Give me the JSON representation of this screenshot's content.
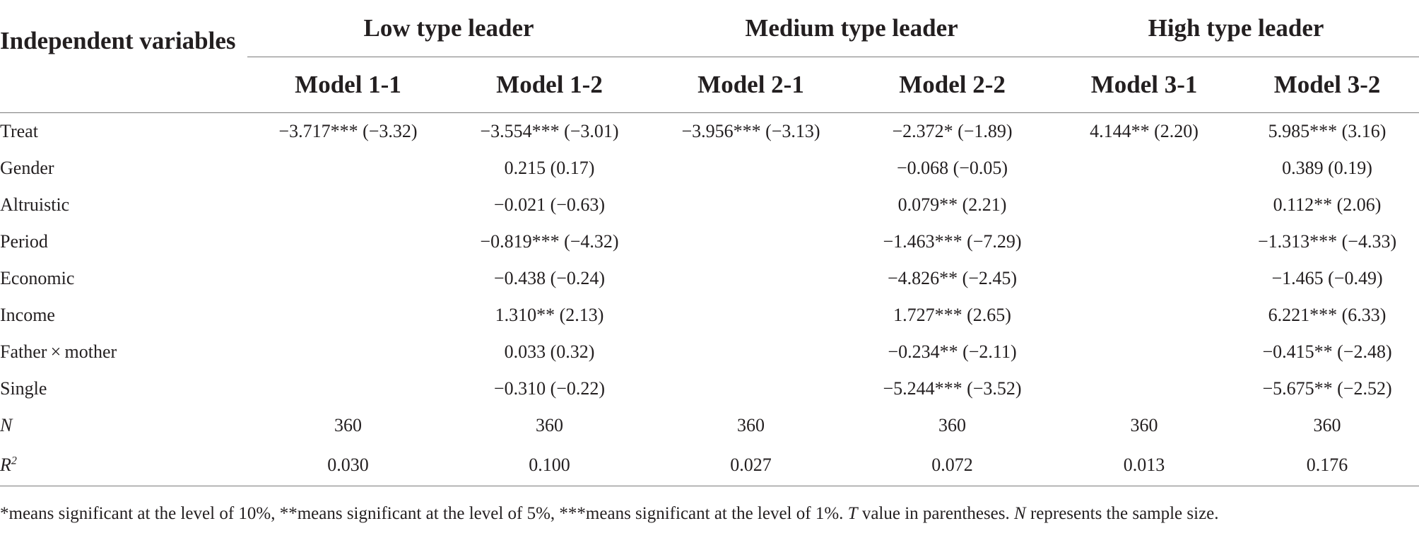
{
  "table": {
    "row_header": "Independent variables",
    "groups": [
      "Low type leader",
      "Medium type leader",
      "High type leader"
    ],
    "models": [
      "Model 1-1",
      "Model 1-2",
      "Model 2-1",
      "Model 2-2",
      "Model 3-1",
      "Model 3-2"
    ],
    "rows": [
      {
        "label": "Treat",
        "cells": [
          "−3.717*** (−3.32)",
          "−3.554*** (−3.01)",
          "−3.956*** (−3.13)",
          "−2.372* (−1.89)",
          "4.144** (2.20)",
          "5.985*** (3.16)"
        ]
      },
      {
        "label": "Gender",
        "cells": [
          "",
          "0.215 (0.17)",
          "",
          "−0.068 (−0.05)",
          "",
          "0.389 (0.19)"
        ]
      },
      {
        "label": "Altruistic",
        "cells": [
          "",
          "−0.021 (−0.63)",
          "",
          "0.079** (2.21)",
          "",
          "0.112** (2.06)"
        ]
      },
      {
        "label": "Period",
        "cells": [
          "",
          "−0.819*** (−4.32)",
          "",
          "−1.463*** (−7.29)",
          "",
          "−1.313*** (−4.33)"
        ]
      },
      {
        "label": "Economic",
        "cells": [
          "",
          "−0.438 (−0.24)",
          "",
          "−4.826** (−2.45)",
          "",
          "−1.465 (−0.49)"
        ]
      },
      {
        "label": "Income",
        "cells": [
          "",
          "1.310** (2.13)",
          "",
          "1.727*** (2.65)",
          "",
          "6.221*** (6.33)"
        ]
      },
      {
        "label": "Father × mother",
        "cells": [
          "",
          "0.033 (0.32)",
          "",
          "−0.234** (−2.11)",
          "",
          "−0.415** (−2.48)"
        ]
      },
      {
        "label": "Single",
        "cells": [
          "",
          "−0.310 (−0.22)",
          "",
          "−5.244*** (−3.52)",
          "",
          "−5.675** (−2.52)"
        ]
      },
      {
        "label": "N",
        "cells": [
          "360",
          "360",
          "360",
          "360",
          "360",
          "360"
        ]
      },
      {
        "label": "R",
        "label_sup": "2",
        "cells": [
          "0.030",
          "0.100",
          "0.027",
          "0.072",
          "0.013",
          "0.176"
        ]
      }
    ]
  },
  "note": {
    "part1": "*means significant at the level of 10%, **means significant at the level of 5%, ***means significant at the level of 1%. ",
    "t": "T",
    "part2": " value in parentheses. ",
    "n": "N",
    "part3": " represents the sample size."
  }
}
